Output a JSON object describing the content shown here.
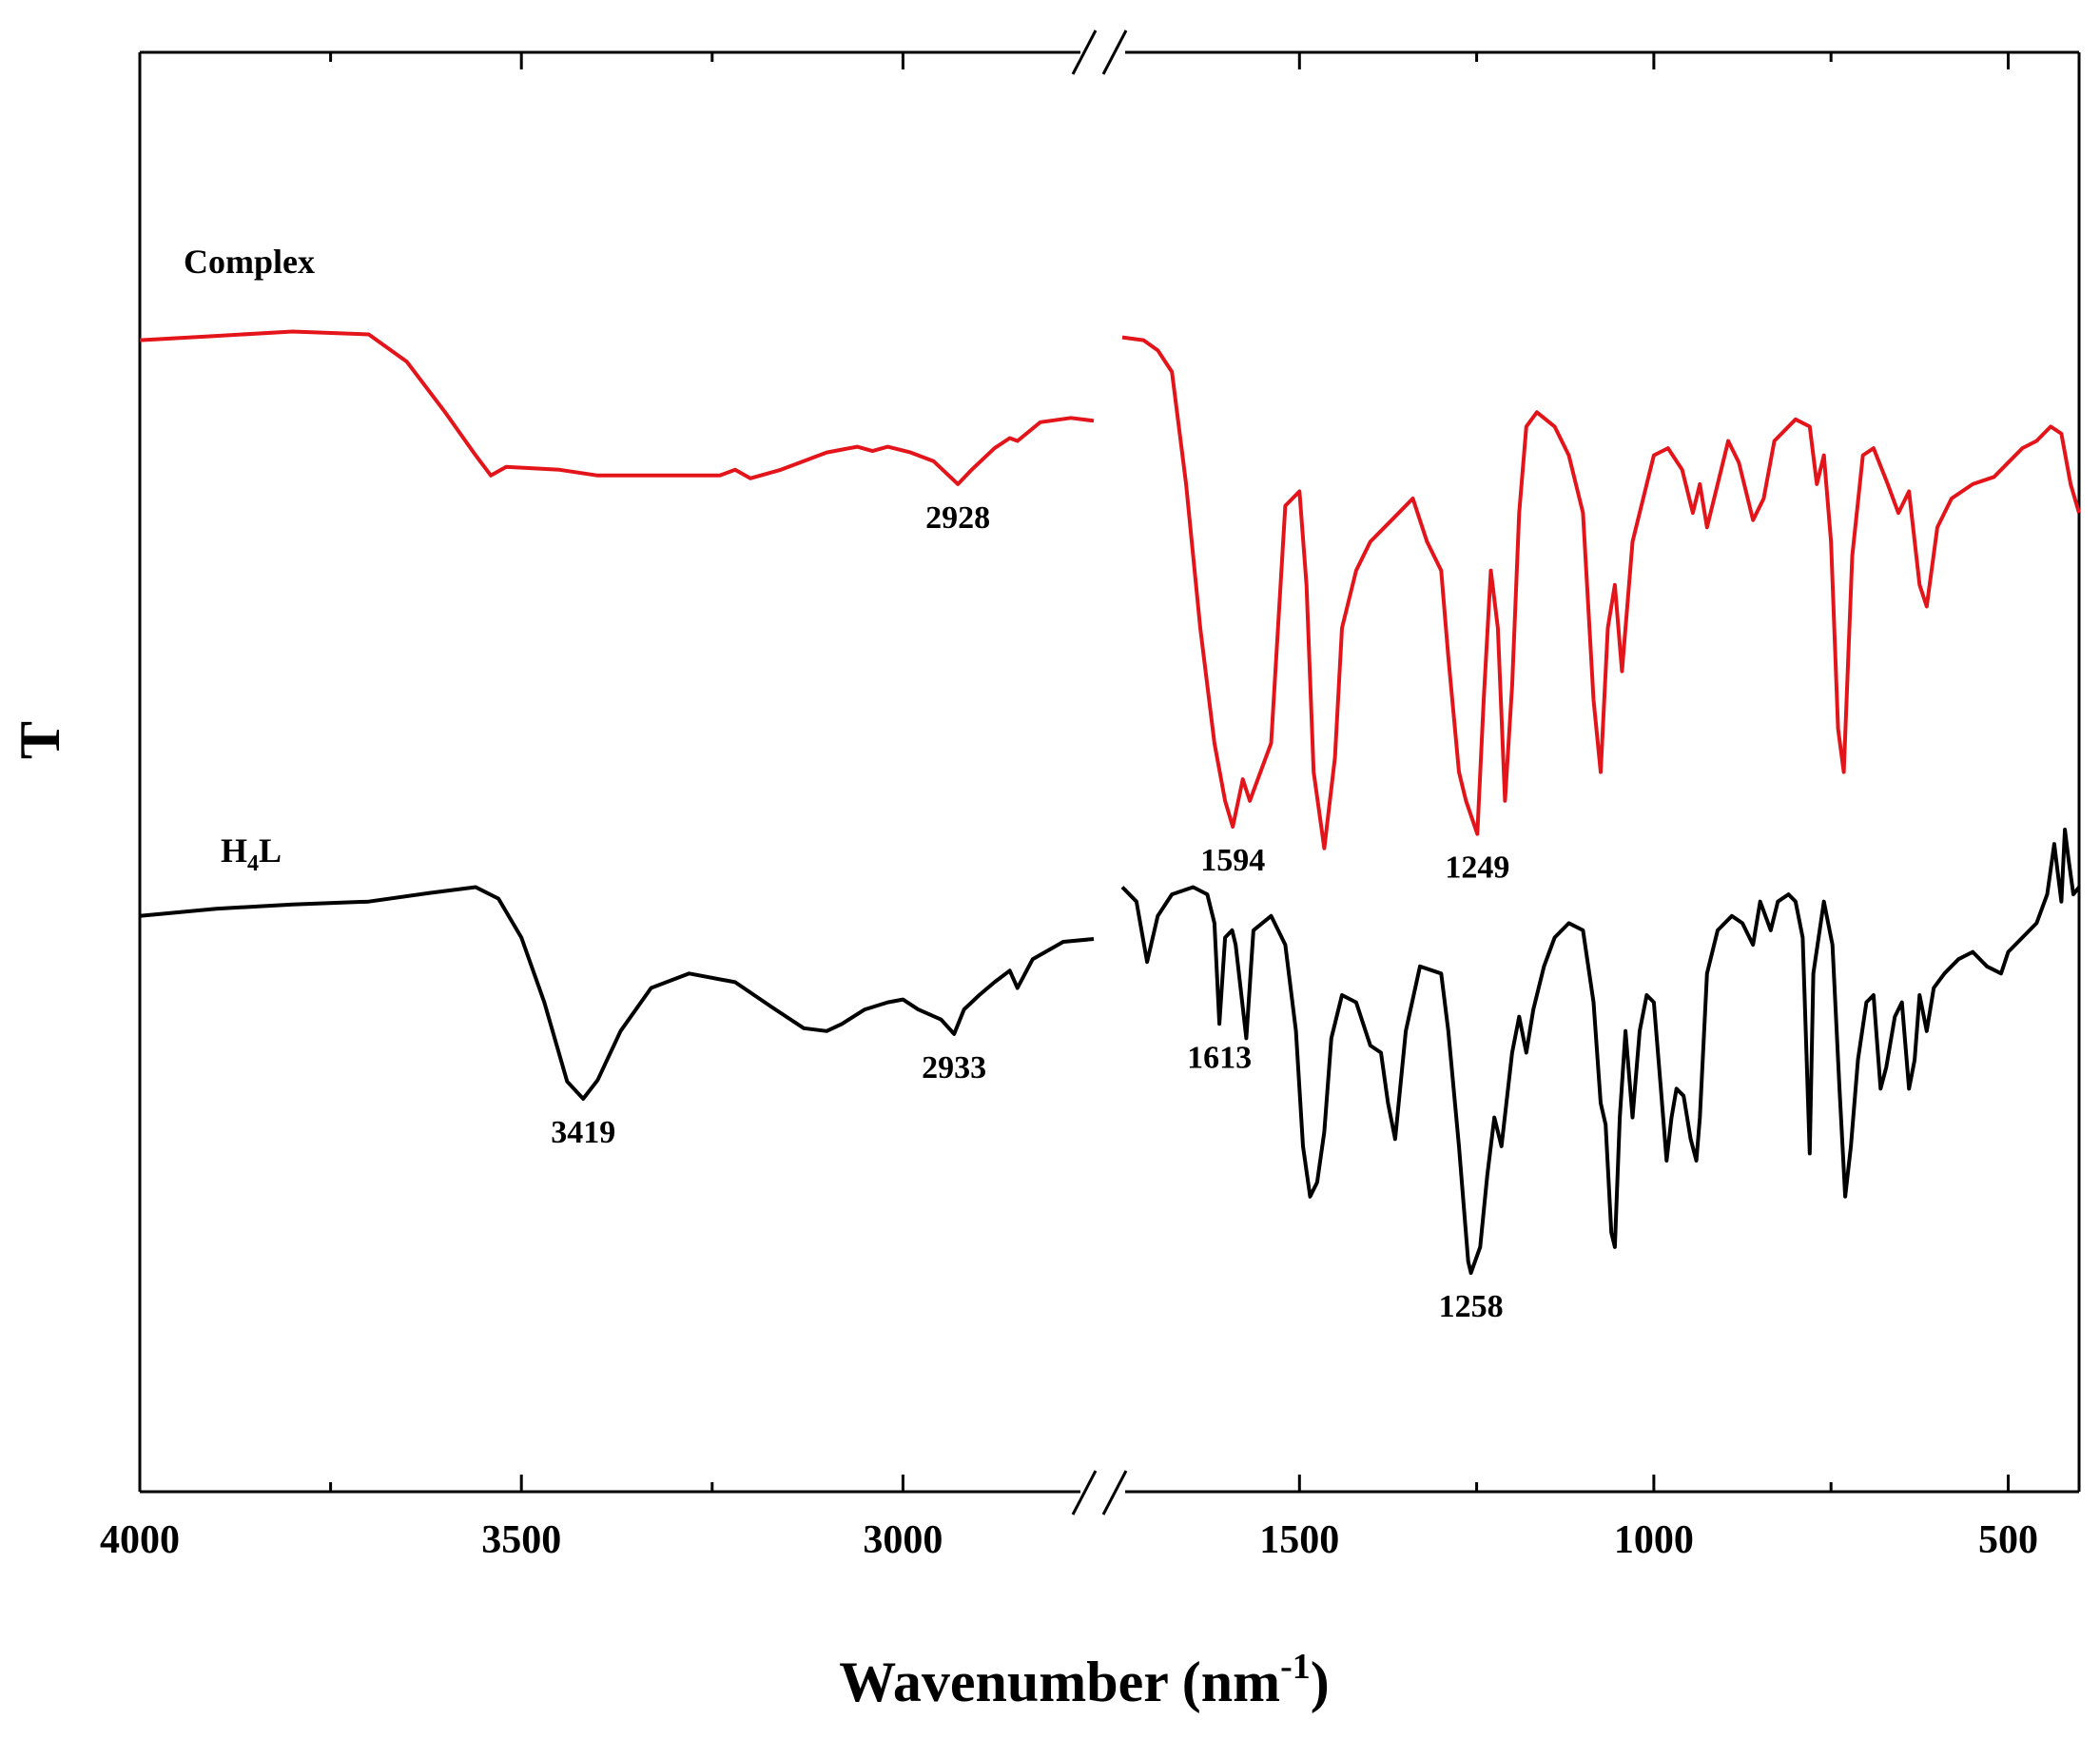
{
  "chart_data": {
    "type": "line",
    "title": "",
    "xlabel": "Wavenumber (nm",
    "xlabel_sup": "-1",
    "xlabel_close": ")",
    "ylabel": "T",
    "x_reversed": true,
    "axis_break": {
      "left_segment": [
        4000,
        2750
      ],
      "right_segment": [
        1750,
        400
      ]
    },
    "x_ticks": [
      4000,
      3500,
      3000,
      1500,
      1000,
      500
    ],
    "x_tick_labels": [
      "4000",
      "3500",
      "3000",
      "1500",
      "1000",
      "500"
    ],
    "ylim": [
      0,
      100
    ],
    "colors": {
      "Complex": "#e3141a",
      "H4L": "#000000",
      "axis": "#000000"
    },
    "series": [
      {
        "name": "Complex",
        "label": "Complex",
        "color": "#e3141a",
        "points": [
          [
            4000,
            80.0
          ],
          [
            3900,
            80.3
          ],
          [
            3800,
            80.6
          ],
          [
            3700,
            80.4
          ],
          [
            3650,
            78.5
          ],
          [
            3600,
            75.0
          ],
          [
            3560,
            72.0
          ],
          [
            3540,
            70.6
          ],
          [
            3520,
            71.2
          ],
          [
            3450,
            71.0
          ],
          [
            3400,
            70.6
          ],
          [
            3300,
            70.6
          ],
          [
            3240,
            70.6
          ],
          [
            3220,
            71.0
          ],
          [
            3200,
            70.4
          ],
          [
            3160,
            71.0
          ],
          [
            3100,
            72.2
          ],
          [
            3060,
            72.6
          ],
          [
            3040,
            72.3
          ],
          [
            3020,
            72.6
          ],
          [
            2990,
            72.2
          ],
          [
            2960,
            71.6
          ],
          [
            2940,
            70.6
          ],
          [
            2928,
            70.0
          ],
          [
            2910,
            71.0
          ],
          [
            2880,
            72.5
          ],
          [
            2860,
            73.2
          ],
          [
            2850,
            73.0
          ],
          [
            2820,
            74.3
          ],
          [
            2780,
            74.6
          ],
          [
            2750,
            74.4
          ],
          [
            1750,
            80.2
          ],
          [
            1720,
            80.0
          ],
          [
            1700,
            79.3
          ],
          [
            1680,
            77.8
          ],
          [
            1660,
            70.0
          ],
          [
            1640,
            60.0
          ],
          [
            1620,
            52.0
          ],
          [
            1605,
            48.0
          ],
          [
            1594,
            46.2
          ],
          [
            1580,
            49.5
          ],
          [
            1570,
            48.0
          ],
          [
            1555,
            50.0
          ],
          [
            1540,
            52.0
          ],
          [
            1520,
            68.5
          ],
          [
            1500,
            69.5
          ],
          [
            1490,
            63.0
          ],
          [
            1480,
            50.0
          ],
          [
            1465,
            44.7
          ],
          [
            1450,
            51.0
          ],
          [
            1440,
            60.0
          ],
          [
            1420,
            64.0
          ],
          [
            1400,
            66.0
          ],
          [
            1380,
            67.0
          ],
          [
            1360,
            68.0
          ],
          [
            1340,
            69.0
          ],
          [
            1320,
            66.0
          ],
          [
            1300,
            64.0
          ],
          [
            1290,
            58.0
          ],
          [
            1275,
            50.0
          ],
          [
            1265,
            48.0
          ],
          [
            1249,
            45.7
          ],
          [
            1240,
            55.0
          ],
          [
            1230,
            64.0
          ],
          [
            1220,
            60.0
          ],
          [
            1210,
            48.0
          ],
          [
            1200,
            56.0
          ],
          [
            1190,
            68.0
          ],
          [
            1180,
            74.0
          ],
          [
            1165,
            75.0
          ],
          [
            1140,
            74.0
          ],
          [
            1120,
            72.0
          ],
          [
            1100,
            68.0
          ],
          [
            1085,
            55.0
          ],
          [
            1075,
            50.0
          ],
          [
            1065,
            60.0
          ],
          [
            1055,
            63.0
          ],
          [
            1045,
            57.0
          ],
          [
            1030,
            66.0
          ],
          [
            1000,
            72.0
          ],
          [
            980,
            72.5
          ],
          [
            960,
            71.0
          ],
          [
            945,
            68.0
          ],
          [
            935,
            70.0
          ],
          [
            925,
            67.0
          ],
          [
            910,
            70.0
          ],
          [
            895,
            73.0
          ],
          [
            880,
            71.5
          ],
          [
            860,
            67.5
          ],
          [
            845,
            69.0
          ],
          [
            830,
            73.0
          ],
          [
            800,
            74.5
          ],
          [
            780,
            74.0
          ],
          [
            770,
            70.0
          ],
          [
            760,
            72.0
          ],
          [
            750,
            66.0
          ],
          [
            740,
            53.0
          ],
          [
            732,
            50.0
          ],
          [
            720,
            65.0
          ],
          [
            705,
            72.0
          ],
          [
            690,
            72.5
          ],
          [
            670,
            70.0
          ],
          [
            655,
            68.0
          ],
          [
            640,
            69.5
          ],
          [
            625,
            63.0
          ],
          [
            615,
            61.5
          ],
          [
            600,
            67.0
          ],
          [
            580,
            69.0
          ],
          [
            550,
            70.0
          ],
          [
            520,
            70.5
          ],
          [
            500,
            71.5
          ],
          [
            480,
            72.5
          ],
          [
            460,
            73.0
          ],
          [
            440,
            74.0
          ],
          [
            425,
            73.5
          ],
          [
            412,
            70.0
          ],
          [
            400,
            68.0
          ]
        ],
        "peak_labels": [
          {
            "x": 2928,
            "label": "2928"
          },
          {
            "x": 1594,
            "label": "1594"
          },
          {
            "x": 1249,
            "label": "1249"
          }
        ]
      },
      {
        "name": "H4L",
        "label_main": "H",
        "label_sub": "4",
        "label_end": "L",
        "color": "#000000",
        "points": [
          [
            4000,
            40.0
          ],
          [
            3900,
            40.5
          ],
          [
            3800,
            40.8
          ],
          [
            3700,
            41.0
          ],
          [
            3620,
            41.6
          ],
          [
            3560,
            42.0
          ],
          [
            3530,
            41.2
          ],
          [
            3500,
            38.5
          ],
          [
            3470,
            34.0
          ],
          [
            3440,
            28.5
          ],
          [
            3419,
            27.3
          ],
          [
            3400,
            28.6
          ],
          [
            3370,
            32.0
          ],
          [
            3330,
            35.0
          ],
          [
            3280,
            36.0
          ],
          [
            3220,
            35.4
          ],
          [
            3170,
            33.6
          ],
          [
            3130,
            32.2
          ],
          [
            3100,
            32.0
          ],
          [
            3080,
            32.5
          ],
          [
            3050,
            33.5
          ],
          [
            3020,
            34.0
          ],
          [
            3000,
            34.2
          ],
          [
            2980,
            33.5
          ],
          [
            2950,
            32.8
          ],
          [
            2933,
            31.8
          ],
          [
            2920,
            33.5
          ],
          [
            2900,
            34.5
          ],
          [
            2880,
            35.4
          ],
          [
            2860,
            36.2
          ],
          [
            2850,
            35.0
          ],
          [
            2830,
            37.0
          ],
          [
            2790,
            38.2
          ],
          [
            2750,
            38.4
          ],
          [
            1750,
            42.0
          ],
          [
            1730,
            41.0
          ],
          [
            1715,
            36.8
          ],
          [
            1700,
            40.0
          ],
          [
            1680,
            41.5
          ],
          [
            1650,
            42.0
          ],
          [
            1630,
            41.5
          ],
          [
            1620,
            39.5
          ],
          [
            1613,
            32.5
          ],
          [
            1605,
            38.5
          ],
          [
            1595,
            39.0
          ],
          [
            1590,
            38.0
          ],
          [
            1575,
            31.5
          ],
          [
            1565,
            39.0
          ],
          [
            1540,
            40.0
          ],
          [
            1520,
            38.0
          ],
          [
            1505,
            32.0
          ],
          [
            1495,
            24.0
          ],
          [
            1485,
            20.5
          ],
          [
            1475,
            21.5
          ],
          [
            1465,
            25.0
          ],
          [
            1455,
            31.5
          ],
          [
            1440,
            34.5
          ],
          [
            1420,
            34.0
          ],
          [
            1400,
            31.0
          ],
          [
            1385,
            30.5
          ],
          [
            1375,
            27.0
          ],
          [
            1365,
            24.5
          ],
          [
            1350,
            32.0
          ],
          [
            1330,
            36.5
          ],
          [
            1300,
            36.0
          ],
          [
            1290,
            32.0
          ],
          [
            1275,
            24.0
          ],
          [
            1262,
            16.0
          ],
          [
            1258,
            15.2
          ],
          [
            1245,
            17.0
          ],
          [
            1235,
            22.0
          ],
          [
            1225,
            26.0
          ],
          [
            1215,
            24.0
          ],
          [
            1200,
            30.5
          ],
          [
            1190,
            33.0
          ],
          [
            1180,
            30.5
          ],
          [
            1170,
            33.5
          ],
          [
            1155,
            36.5
          ],
          [
            1140,
            38.5
          ],
          [
            1120,
            39.5
          ],
          [
            1100,
            39.0
          ],
          [
            1085,
            34.0
          ],
          [
            1075,
            27.0
          ],
          [
            1068,
            25.5
          ],
          [
            1060,
            18.0
          ],
          [
            1055,
            17.0
          ],
          [
            1048,
            26.0
          ],
          [
            1040,
            32.0
          ],
          [
            1030,
            26.0
          ],
          [
            1020,
            32.0
          ],
          [
            1010,
            34.5
          ],
          [
            1000,
            34.0
          ],
          [
            990,
            28.0
          ],
          [
            982,
            23.0
          ],
          [
            975,
            26.0
          ],
          [
            968,
            28.0
          ],
          [
            958,
            27.5
          ],
          [
            948,
            24.5
          ],
          [
            940,
            23.0
          ],
          [
            935,
            26.0
          ],
          [
            925,
            36.0
          ],
          [
            910,
            39.0
          ],
          [
            890,
            40.0
          ],
          [
            875,
            39.5
          ],
          [
            860,
            38.0
          ],
          [
            850,
            41.0
          ],
          [
            835,
            39.0
          ],
          [
            825,
            41.0
          ],
          [
            810,
            41.5
          ],
          [
            800,
            41.0
          ],
          [
            790,
            38.5
          ],
          [
            780,
            23.5
          ],
          [
            775,
            36.0
          ],
          [
            760,
            41.0
          ],
          [
            748,
            38.0
          ],
          [
            738,
            28.0
          ],
          [
            730,
            20.5
          ],
          [
            722,
            24.0
          ],
          [
            712,
            30.0
          ],
          [
            700,
            34.0
          ],
          [
            690,
            34.5
          ],
          [
            680,
            28.0
          ],
          [
            672,
            29.5
          ],
          [
            660,
            33.0
          ],
          [
            650,
            34.0
          ],
          [
            640,
            28.0
          ],
          [
            632,
            30.0
          ],
          [
            625,
            34.5
          ],
          [
            615,
            32.0
          ],
          [
            605,
            35.0
          ],
          [
            590,
            36.0
          ],
          [
            570,
            37.0
          ],
          [
            550,
            37.5
          ],
          [
            530,
            36.5
          ],
          [
            510,
            36.0
          ],
          [
            500,
            37.5
          ],
          [
            480,
            38.5
          ],
          [
            460,
            39.5
          ],
          [
            445,
            41.5
          ],
          [
            435,
            45.0
          ],
          [
            430,
            43.0
          ],
          [
            425,
            41.0
          ],
          [
            420,
            46.0
          ],
          [
            415,
            44.0
          ],
          [
            408,
            41.5
          ],
          [
            400,
            42.0
          ]
        ],
        "peak_labels": [
          {
            "x": 3419,
            "label": "3419"
          },
          {
            "x": 2933,
            "label": "2933"
          },
          {
            "x": 1613,
            "label": "1613"
          },
          {
            "x": 1258,
            "label": "1258"
          }
        ]
      }
    ]
  }
}
